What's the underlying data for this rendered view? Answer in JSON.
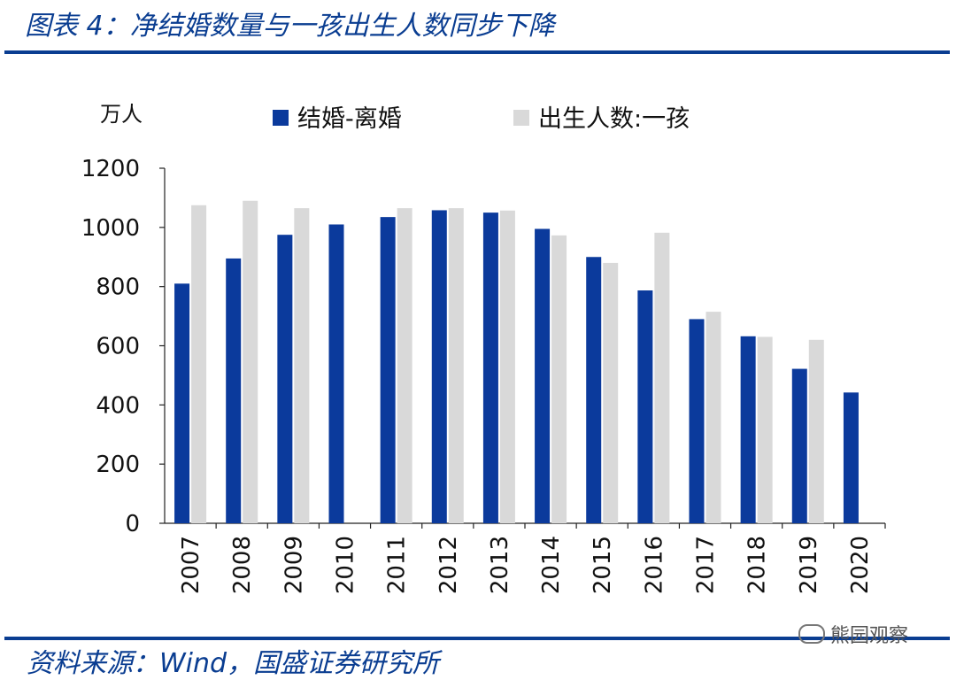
{
  "header": {
    "title": "图表 4：净结婚数量与一孩出生人数同步下降"
  },
  "footer": {
    "source": "资料来源：Wind，国盛证券研究所",
    "watermark": "熊园观察"
  },
  "colors": {
    "accent": "#0a3d91",
    "series_primary": "#0b3a9c",
    "series_secondary": "#d9d9d9"
  },
  "chart_data": {
    "type": "bar",
    "unit_label": "万人",
    "categories": [
      "2007",
      "2008",
      "2009",
      "2010",
      "2011",
      "2012",
      "2013",
      "2014",
      "2015",
      "2016",
      "2017",
      "2018",
      "2019",
      "2020"
    ],
    "series": [
      {
        "name": "结婚-离婚",
        "color": "#0b3a9c",
        "values": [
          810,
          895,
          975,
          1010,
          1035,
          1058,
          1050,
          995,
          900,
          787,
          690,
          632,
          522,
          442
        ]
      },
      {
        "name": "出生人数:一孩",
        "color": "#d9d9d9",
        "values": [
          1075,
          1090,
          1065,
          null,
          1065,
          1065,
          1057,
          973,
          880,
          982,
          715,
          630,
          620,
          null
        ]
      }
    ],
    "ylim": [
      0,
      1200
    ],
    "yticks": [
      "0",
      "200",
      "400",
      "600",
      "800",
      "1000",
      "1200"
    ],
    "legend_position": "top",
    "grid": false
  }
}
